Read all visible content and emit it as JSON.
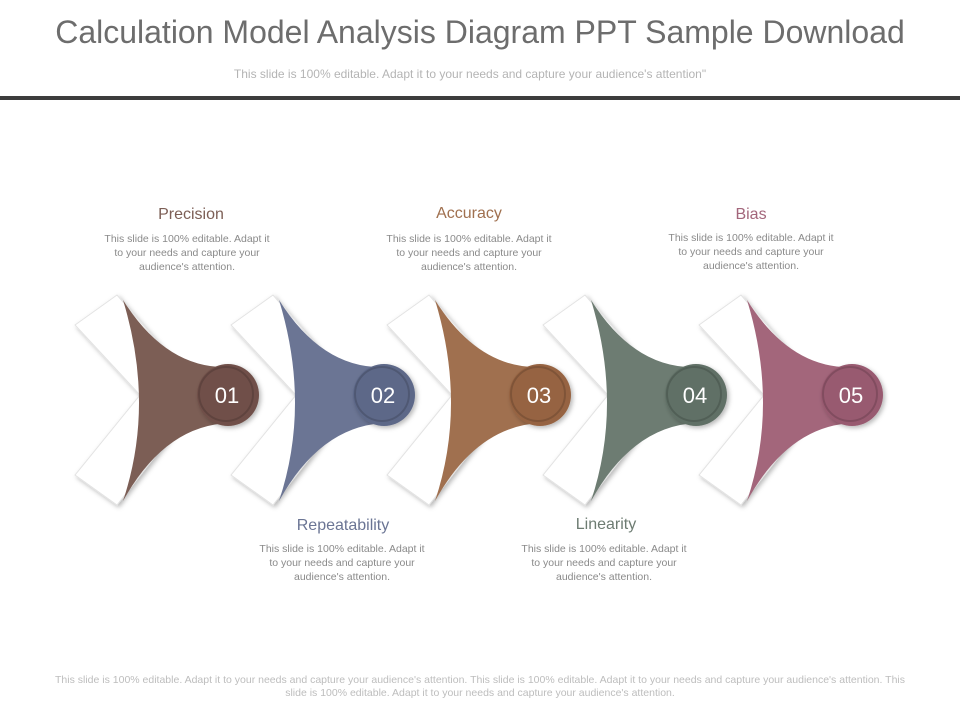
{
  "header": {
    "title": "Calculation Model Analysis Diagram PPT Sample Download",
    "subtitle": "This slide is 100% editable. Adapt it to your needs and capture your audience's attention\""
  },
  "steps": [
    {
      "number": "01",
      "label": "Precision",
      "desc": "This slide is 100% editable. Adapt it to your needs and capture your audience's attention.",
      "color": "#7c5e55",
      "circle": "#6f5048"
    },
    {
      "number": "02",
      "label": "Repeatability",
      "desc": "This slide is 100% editable. Adapt it to your needs and capture your audience's attention.",
      "color": "#6b7594",
      "circle": "#5d6888"
    },
    {
      "number": "03",
      "label": "Accuracy",
      "desc": "This slide is 100% editable. Adapt it to your needs and capture your audience's attention.",
      "color": "#a0704f",
      "circle": "#966442"
    },
    {
      "number": "04",
      "label": "Linearity",
      "desc": "This slide is 100% editable. Adapt it to your needs and capture your audience's attention.",
      "color": "#6d7c72",
      "circle": "#617066"
    },
    {
      "number": "05",
      "label": "Bias",
      "desc": "This slide is 100% editable. Adapt it to your needs and capture your audience's attention.",
      "color": "#a3667b",
      "circle": "#985a70"
    }
  ],
  "footer": "This slide is 100% editable. Adapt it to your needs and capture your audience's attention. This slide is 100% editable. Adapt it to your needs and capture your audience's attention. This slide is 100% editable. Adapt it to your needs and capture your audience's attention."
}
